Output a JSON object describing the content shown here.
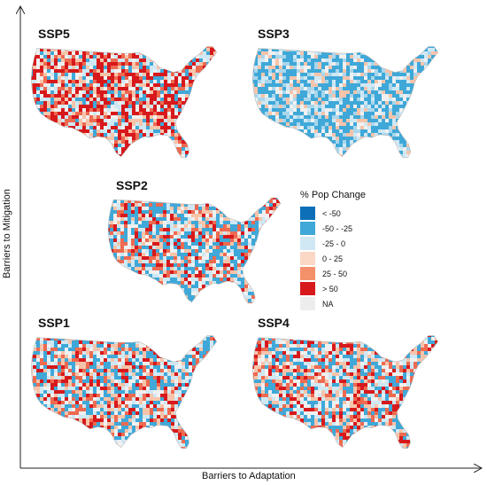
{
  "axes": {
    "x_label": "Barriers to Adaptation",
    "y_label": "Barriers to Mitigation"
  },
  "panels": [
    {
      "id": "ssp5",
      "title": "SSP5",
      "palette": [
        "#d7191c",
        "#ee6a50",
        "#f7c4aa",
        "#cfe8f4",
        "#f0f0f0",
        "#3fa8d8",
        "#d7191c"
      ]
    },
    {
      "id": "ssp3",
      "title": "SSP3",
      "palette": [
        "#3fa8d8",
        "#3fa8d8",
        "#cfe8f4",
        "#f0f0f0",
        "#f7c4aa",
        "#3fa8d8",
        "#a9d6ec"
      ]
    },
    {
      "id": "ssp2",
      "title": "SSP2",
      "palette": [
        "#3fa8d8",
        "#f7c4aa",
        "#f0f0f0",
        "#cfe8f4",
        "#ee6a50",
        "#d7191c",
        "#3fa8d8"
      ]
    },
    {
      "id": "ssp1",
      "title": "SSP1",
      "palette": [
        "#f0f0f0",
        "#3fa8d8",
        "#f7c4aa",
        "#d7191c",
        "#cfe8f4",
        "#ee6a50",
        "#3fa8d8"
      ]
    },
    {
      "id": "ssp4",
      "title": "SSP4",
      "palette": [
        "#f0f0f0",
        "#3fa8d8",
        "#f7c4aa",
        "#d7191c",
        "#cfe8f4",
        "#ee6a50",
        "#3fa8d8"
      ]
    }
  ],
  "legend": {
    "title": "% Pop Change",
    "items": [
      {
        "label": "< -50",
        "color": "#0c6fb8"
      },
      {
        "label": "-50 - -25",
        "color": "#3fa8d8"
      },
      {
        "label": "-25 - 0",
        "color": "#cfe8f4"
      },
      {
        "label": "0 - 25",
        "color": "#fbd8c5"
      },
      {
        "label": "25 - 50",
        "color": "#f4906a"
      },
      {
        "label": "> 50",
        "color": "#d7191c"
      },
      {
        "label": "NA",
        "color": "#ededed"
      }
    ]
  }
}
